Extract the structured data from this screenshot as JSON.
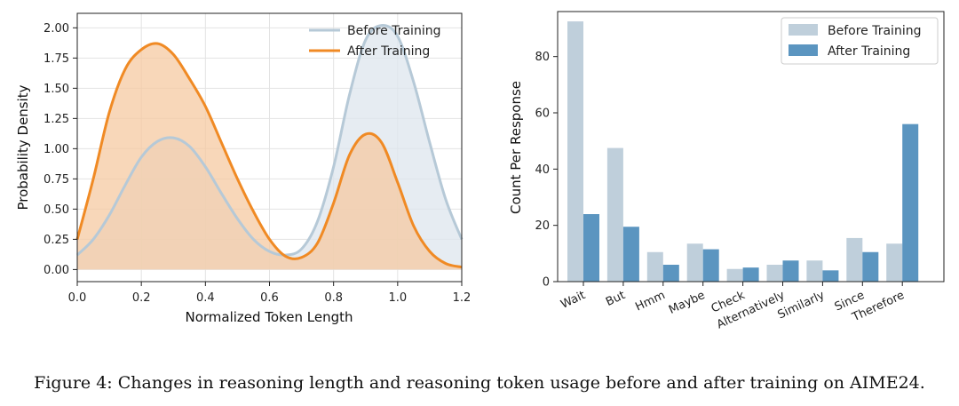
{
  "colors": {
    "before": "#b6c9d7",
    "before_fill": "#dde6ee",
    "after": "#f08a24",
    "after_fill": "#f6caa1",
    "bar_before": "#bfcfdb",
    "bar_after": "#5b95c0"
  },
  "caption": "Figure 4: Changes in reasoning length and reasoning token usage before and after training on AIME24.",
  "chart_data": [
    {
      "type": "area",
      "title": "",
      "xlabel": "Normalized Token Length",
      "ylabel": "Probability Density",
      "xlim": [
        0.0,
        1.2
      ],
      "ylim": [
        -0.1,
        2.12
      ],
      "xticks": [
        "0.0",
        "0.2",
        "0.4",
        "0.6",
        "0.8",
        "1.0",
        "1.2"
      ],
      "yticks": [
        "0.00",
        "0.25",
        "0.50",
        "0.75",
        "1.00",
        "1.25",
        "1.50",
        "1.75",
        "2.00"
      ],
      "grid": true,
      "legend_position": "top-right",
      "series": [
        {
          "name": "Before Training",
          "x": [
            0.0,
            0.05,
            0.1,
            0.15,
            0.2,
            0.25,
            0.3,
            0.35,
            0.4,
            0.45,
            0.5,
            0.55,
            0.6,
            0.65,
            0.7,
            0.75,
            0.8,
            0.85,
            0.9,
            0.95,
            1.0,
            1.05,
            1.1,
            1.15,
            1.2
          ],
          "y": [
            0.12,
            0.25,
            0.45,
            0.7,
            0.93,
            1.06,
            1.09,
            1.02,
            0.85,
            0.63,
            0.42,
            0.25,
            0.15,
            0.12,
            0.17,
            0.4,
            0.85,
            1.45,
            1.9,
            2.02,
            1.93,
            1.55,
            1.05,
            0.58,
            0.25
          ]
        },
        {
          "name": "After Training",
          "x": [
            0.0,
            0.05,
            0.1,
            0.15,
            0.2,
            0.25,
            0.3,
            0.35,
            0.4,
            0.45,
            0.5,
            0.55,
            0.6,
            0.65,
            0.7,
            0.75,
            0.8,
            0.85,
            0.9,
            0.95,
            1.0,
            1.05,
            1.1,
            1.15,
            1.2
          ],
          "y": [
            0.25,
            0.75,
            1.3,
            1.66,
            1.82,
            1.87,
            1.78,
            1.58,
            1.35,
            1.05,
            0.75,
            0.48,
            0.25,
            0.11,
            0.1,
            0.22,
            0.55,
            0.95,
            1.12,
            1.05,
            0.72,
            0.36,
            0.15,
            0.05,
            0.02
          ]
        }
      ]
    },
    {
      "type": "bar",
      "title": "",
      "xlabel": "",
      "ylabel": "Count Per Response",
      "ylim": [
        0,
        96
      ],
      "yticks": [
        "0",
        "20",
        "40",
        "60",
        "80"
      ],
      "grid": false,
      "legend_position": "top-right",
      "categories": [
        "Wait",
        "But",
        "Hmm",
        "Maybe",
        "Check",
        "Alternatively",
        "Similarly",
        "Since",
        "Therefore"
      ],
      "series": [
        {
          "name": "Before Training",
          "values": [
            92.5,
            47.5,
            10.5,
            13.5,
            4.5,
            6.0,
            7.5,
            15.5,
            13.5
          ]
        },
        {
          "name": "After Training",
          "values": [
            24.0,
            19.5,
            6.0,
            11.5,
            5.0,
            7.5,
            4.0,
            10.5,
            56.0
          ]
        }
      ]
    }
  ]
}
